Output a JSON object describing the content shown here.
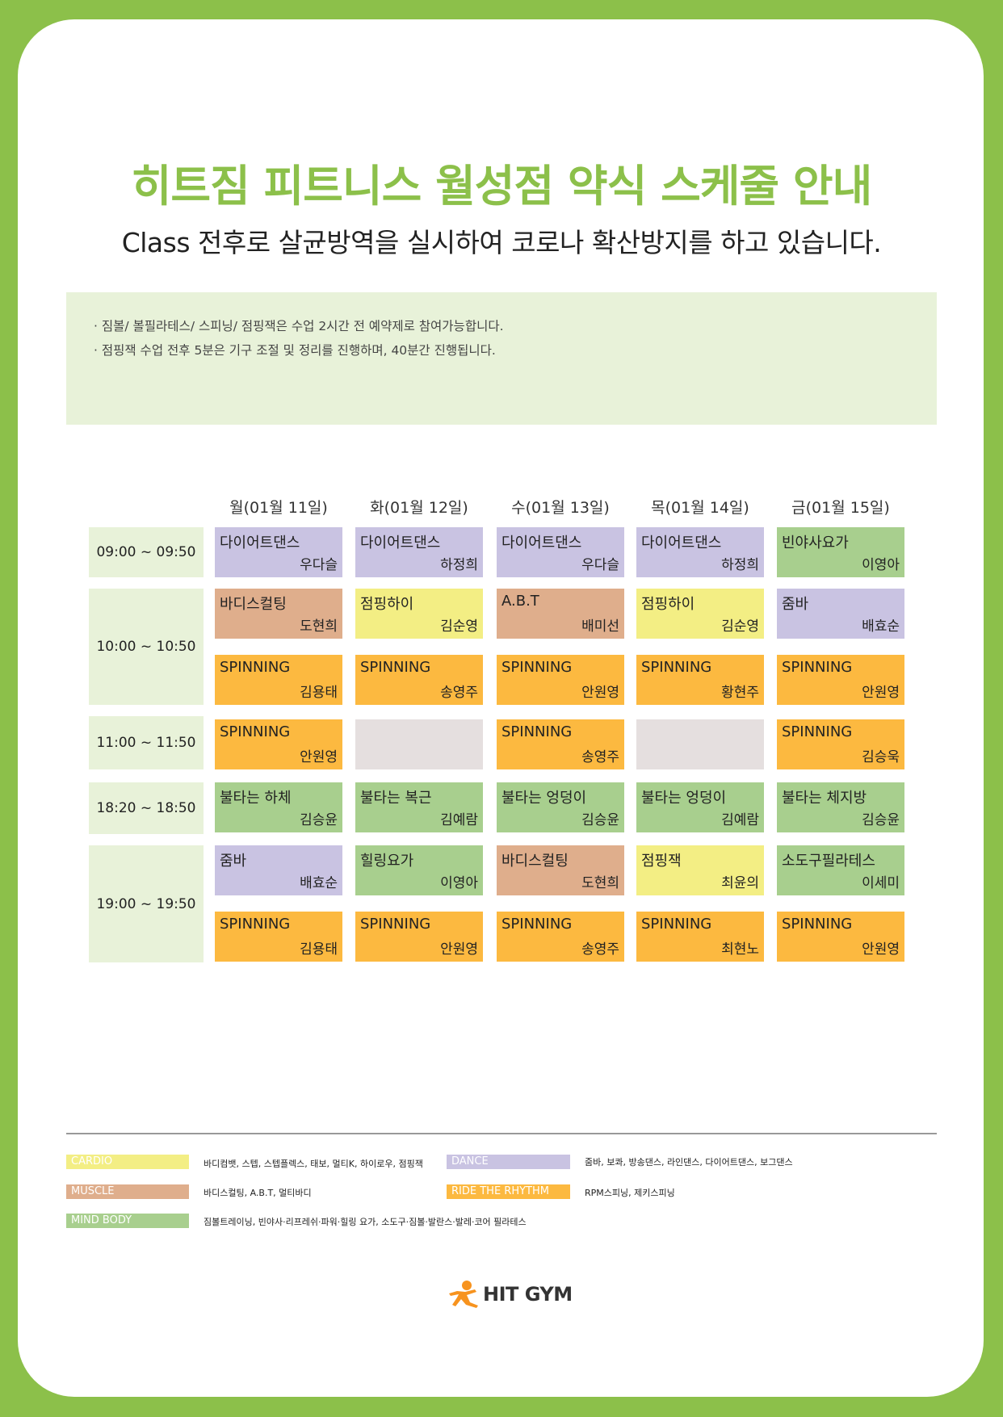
{
  "title": "히트짐 피트니스 월성점 약식 스케줄 안내",
  "subtitle": "Class 전후로 살균방역을 실시하여 코로나 확산방지를 하고 있습니다.",
  "notices": [
    "· 짐볼/ 볼필라테스/ 스피닝/ 점핑잭은 수업 2시간 전 예약제로 참여가능합니다.",
    "· 점핑잭 수업 전후 5분은 기구 조절 및 정리를 진행하며, 40분간 진행됩니다."
  ],
  "days": [
    "월(01월 11일)",
    "화(01월 12일)",
    "수(01월 13일)",
    "목(01월 14일)",
    "금(01월 15일)"
  ],
  "times": [
    "09:00 ~ 09:50",
    "10:00 ~ 10:50",
    "11:00 ~ 11:50",
    "18:20 ~ 18:50",
    "19:00 ~ 19:50"
  ],
  "rows": [
    [
      {
        "cls": "다이어트댄스",
        "ins": "우다슬",
        "cat": "dance"
      },
      {
        "cls": "다이어트댄스",
        "ins": "하정희",
        "cat": "dance"
      },
      {
        "cls": "다이어트댄스",
        "ins": "우다슬",
        "cat": "dance"
      },
      {
        "cls": "다이어트댄스",
        "ins": "하정희",
        "cat": "dance"
      },
      {
        "cls": "빈야사요가",
        "ins": "이영아",
        "cat": "mind"
      }
    ],
    [
      {
        "cls": "바디스컬팅",
        "ins": "도현희",
        "cat": "muscle"
      },
      {
        "cls": "점핑하이",
        "ins": "김순영",
        "cat": "cardio"
      },
      {
        "cls": "A.B.T",
        "ins": "배미선",
        "cat": "muscle"
      },
      {
        "cls": "점핑하이",
        "ins": "김순영",
        "cat": "cardio"
      },
      {
        "cls": "줌바",
        "ins": "배효순",
        "cat": "dance"
      }
    ],
    [
      {
        "cls": "SPINNING",
        "ins": "김용태",
        "cat": "ride"
      },
      {
        "cls": "SPINNING",
        "ins": "송영주",
        "cat": "ride"
      },
      {
        "cls": "SPINNING",
        "ins": "안원영",
        "cat": "ride"
      },
      {
        "cls": "SPINNING",
        "ins": "황현주",
        "cat": "ride"
      },
      {
        "cls": "SPINNING",
        "ins": "안원영",
        "cat": "ride"
      }
    ],
    [
      {
        "cls": "SPINNING",
        "ins": "안원영",
        "cat": "ride"
      },
      {
        "cls": "",
        "ins": "",
        "cat": "empty"
      },
      {
        "cls": "SPINNING",
        "ins": "송영주",
        "cat": "ride"
      },
      {
        "cls": "",
        "ins": "",
        "cat": "empty"
      },
      {
        "cls": "SPINNING",
        "ins": "김승욱",
        "cat": "ride"
      }
    ],
    [
      {
        "cls": "불타는 하체",
        "ins": "김승윤",
        "cat": "mind"
      },
      {
        "cls": "불타는 복근",
        "ins": "김예람",
        "cat": "mind"
      },
      {
        "cls": "불타는 엉덩이",
        "ins": "김승윤",
        "cat": "mind"
      },
      {
        "cls": "불타는 엉덩이",
        "ins": "김예람",
        "cat": "mind"
      },
      {
        "cls": "불타는 체지방",
        "ins": "김승윤",
        "cat": "mind"
      }
    ],
    [
      {
        "cls": "줌바",
        "ins": "배효순",
        "cat": "dance"
      },
      {
        "cls": "힐링요가",
        "ins": "이영아",
        "cat": "mind"
      },
      {
        "cls": "바디스컬팅",
        "ins": "도현희",
        "cat": "muscle"
      },
      {
        "cls": "점핑잭",
        "ins": "최윤의",
        "cat": "cardio"
      },
      {
        "cls": "소도구필라테스",
        "ins": "이세미",
        "cat": "mind"
      }
    ],
    [
      {
        "cls": "SPINNING",
        "ins": "김용태",
        "cat": "ride"
      },
      {
        "cls": "SPINNING",
        "ins": "안원영",
        "cat": "ride"
      },
      {
        "cls": "SPINNING",
        "ins": "송영주",
        "cat": "ride"
      },
      {
        "cls": "SPINNING",
        "ins": "최현노",
        "cat": "ride"
      },
      {
        "cls": "SPINNING",
        "ins": "안원영",
        "cat": "ride"
      }
    ]
  ],
  "legend": [
    {
      "label": "CARDIO",
      "desc": "바디컴뱃, 스텝, 스텝플렉스, 태보, 멀티K, 하이로우, 점핑잭",
      "color": "#f3ee84"
    },
    {
      "label": "DANCE",
      "desc": "줌바, 보콰, 방송댄스, 라인댄스, 다이어트댄스, 보그댄스",
      "color": "#c9c3e2"
    },
    {
      "label": "MUSCLE",
      "desc": "바디스컬팅, A.B.T, 멀티바디",
      "color": "#dfae8c"
    },
    {
      "label": "RIDE THE RHYTHM",
      "desc": "RPM스피닝, 제키스피닝",
      "color": "#fcb940"
    },
    {
      "label": "MIND BODY",
      "desc": "짐볼트레이닝, 빈야사·리프레쉬·파워·힐링 요가, 소도구·짐볼·발란스·발레·코어 필라테스",
      "color": "#a8cf8e"
    }
  ],
  "brand": {
    "name": "HIT GYM",
    "accent": "#8cc04a",
    "logo_color": "#f7931e"
  }
}
